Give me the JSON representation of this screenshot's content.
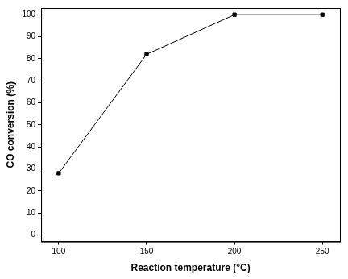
{
  "chart_data": {
    "type": "line",
    "x": [
      100,
      150,
      200,
      250
    ],
    "values": [
      28,
      82,
      100,
      100
    ],
    "color": "#000000",
    "marker": "square",
    "xlabel": "Reaction temperature (°C)",
    "ylabel": "CO conversion (%)",
    "xlim": [
      90,
      260
    ],
    "xticks": [
      100,
      150,
      200,
      250
    ],
    "ylim": [
      -3,
      103
    ],
    "yticks": [
      0,
      10,
      20,
      30,
      40,
      50,
      60,
      70,
      80,
      90,
      100
    ],
    "grid": false
  }
}
